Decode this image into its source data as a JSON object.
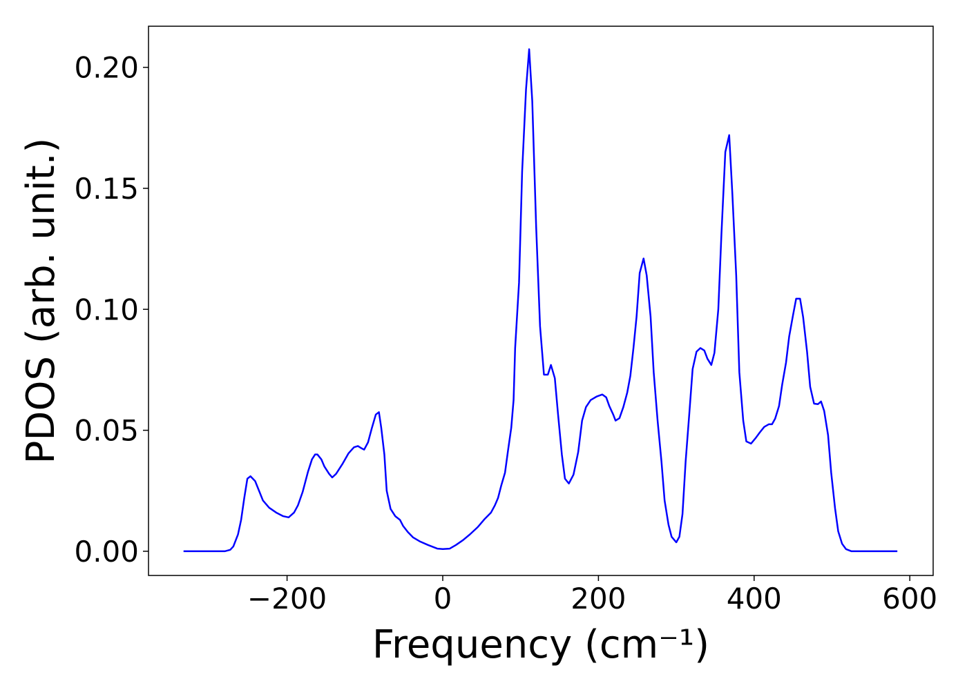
{
  "chart_data": {
    "type": "line",
    "xlabel": "Frequency (cm⁻¹)",
    "ylabel": "PDOS (arb. unit.)",
    "xlim": [
      -378,
      630
    ],
    "ylim": [
      -0.01,
      0.217
    ],
    "xticks": [
      {
        "value": -200,
        "label": "−200"
      },
      0,
      200,
      400,
      600
    ],
    "yticks": [
      {
        "value": 0,
        "label": "0.00"
      },
      0.05,
      {
        "value": 0.1,
        "label": "0.10"
      },
      0.15,
      {
        "value": 0.2,
        "label": "0.20"
      }
    ],
    "grid": false,
    "x": [
      -333,
      -280,
      -273,
      -269,
      -263,
      -259,
      -255,
      -251,
      -247,
      -241,
      -236,
      -231,
      -223,
      -214,
      -205,
      -198,
      -191,
      -186,
      -180,
      -173,
      -168,
      -164,
      -161,
      -156,
      -152,
      -146,
      -142,
      -137,
      -129,
      -121,
      -114,
      -109,
      -104,
      -101,
      -96,
      -91,
      -86,
      -82,
      -79,
      -75,
      -72,
      -67,
      -61,
      -55,
      -51,
      -45,
      -38,
      -29,
      -19,
      -7,
      0,
      9,
      17,
      26,
      35,
      45,
      54,
      62,
      67,
      71,
      75,
      80,
      84,
      88,
      91,
      93,
      98,
      102,
      107,
      111,
      115,
      120,
      125,
      130,
      135,
      139,
      144,
      148,
      153,
      157,
      162,
      168,
      174,
      179,
      184,
      190,
      198,
      205,
      210,
      214,
      219,
      222,
      227,
      232,
      237,
      241,
      245,
      249,
      253,
      258,
      262,
      267,
      271,
      276,
      281,
      285,
      290,
      294,
      300,
      304,
      308,
      312,
      317,
      321,
      326,
      331,
      336,
      340,
      345,
      349,
      354,
      358,
      363,
      368,
      372,
      377,
      381,
      386,
      390,
      396,
      402,
      407,
      413,
      419,
      423,
      427,
      432,
      436,
      441,
      445,
      450,
      454,
      459,
      463,
      468,
      472,
      477,
      482,
      486,
      490,
      495,
      499,
      504,
      508,
      513,
      518,
      525,
      584
    ],
    "series": [
      {
        "color": "#0000ff",
        "values": [
          0,
          0,
          0.0006,
          0.002,
          0.007,
          0.013,
          0.022,
          0.03,
          0.031,
          0.029,
          0.025,
          0.021,
          0.018,
          0.016,
          0.0145,
          0.014,
          0.016,
          0.019,
          0.0245,
          0.033,
          0.038,
          0.04,
          0.04,
          0.038,
          0.035,
          0.032,
          0.0305,
          0.032,
          0.036,
          0.0405,
          0.043,
          0.0435,
          0.0425,
          0.042,
          0.045,
          0.051,
          0.0565,
          0.0575,
          0.051,
          0.04,
          0.025,
          0.0175,
          0.0145,
          0.013,
          0.0105,
          0.008,
          0.0057,
          0.004,
          0.0026,
          0.0011,
          0.0009,
          0.0011,
          0.0026,
          0.0046,
          0.007,
          0.01,
          0.0134,
          0.016,
          0.019,
          0.022,
          0.027,
          0.0325,
          0.042,
          0.051,
          0.0625,
          0.084,
          0.111,
          0.157,
          0.191,
          0.2075,
          0.186,
          0.134,
          0.093,
          0.073,
          0.073,
          0.077,
          0.0715,
          0.057,
          0.04,
          0.03,
          0.028,
          0.0317,
          0.041,
          0.054,
          0.0596,
          0.0625,
          0.064,
          0.0648,
          0.0636,
          0.06,
          0.0565,
          0.054,
          0.055,
          0.0596,
          0.0656,
          0.0725,
          0.084,
          0.097,
          0.115,
          0.121,
          0.114,
          0.097,
          0.074,
          0.054,
          0.037,
          0.021,
          0.011,
          0.006,
          0.0037,
          0.006,
          0.0154,
          0.037,
          0.058,
          0.0753,
          0.0825,
          0.084,
          0.083,
          0.0796,
          0.077,
          0.082,
          0.1,
          0.131,
          0.165,
          0.172,
          0.148,
          0.114,
          0.074,
          0.054,
          0.0454,
          0.0445,
          0.0468,
          0.049,
          0.0514,
          0.0525,
          0.0525,
          0.0548,
          0.06,
          0.0688,
          0.078,
          0.0887,
          0.0976,
          0.1044,
          0.1044,
          0.0967,
          0.0825,
          0.068,
          0.061,
          0.0608,
          0.0619,
          0.058,
          0.048,
          0.0325,
          0.0177,
          0.0083,
          0.0031,
          0.0009,
          0,
          0
        ]
      }
    ]
  }
}
